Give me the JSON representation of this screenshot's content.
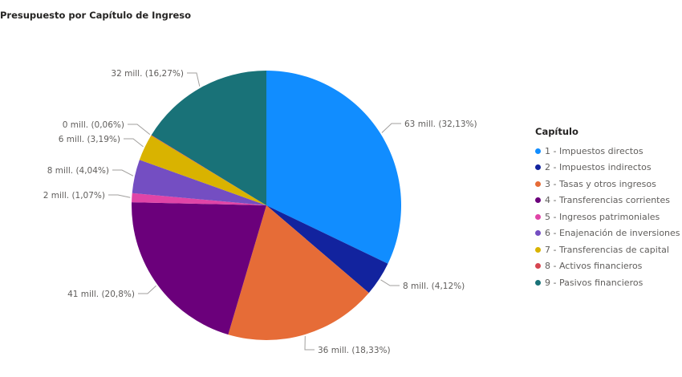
{
  "chart_data": {
    "type": "pie",
    "title": "Presupuesto por Capítulo de Ingreso",
    "legend": {
      "title": "Capítulo",
      "position": "right"
    },
    "start_angle_deg": 0,
    "direction": "clockwise",
    "slices": [
      {
        "name": "1 - Impuestos directos",
        "percent": 32.13,
        "label": "63 mill. (32,13%)",
        "color": "#118DFF"
      },
      {
        "name": "2 - Impuestos indirectos",
        "percent": 4.12,
        "label": "8 mill. (4,12%)",
        "color": "#12239E"
      },
      {
        "name": "3 - Tasas y otros ingresos",
        "percent": 18.33,
        "label": "36 mill. (18,33%)",
        "color": "#E66C37"
      },
      {
        "name": "4 - Transferencias corrientes",
        "percent": 20.8,
        "label": "41 mill. (20,8%)",
        "color": "#6B007B"
      },
      {
        "name": "5 - Ingresos patrimoniales",
        "percent": 1.07,
        "label": "2 mill. (1,07%)",
        "color": "#E044A7"
      },
      {
        "name": "6 - Enajenación de inversiones",
        "percent": 4.04,
        "label": "8 mill. (4,04%)",
        "color": "#744EC2"
      },
      {
        "name": "7 - Transferencias de capital",
        "percent": 3.19,
        "label": "6 mill. (3,19%)",
        "color": "#D9B300"
      },
      {
        "name": "8 - Activos financieros",
        "percent": 0.06,
        "label": "0 mill. (0,06%)",
        "color": "#D64550"
      },
      {
        "name": "9 - Pasivos financieros",
        "percent": 16.27,
        "label": "32 mill. (16,27%)",
        "color": "#197278"
      }
    ]
  }
}
